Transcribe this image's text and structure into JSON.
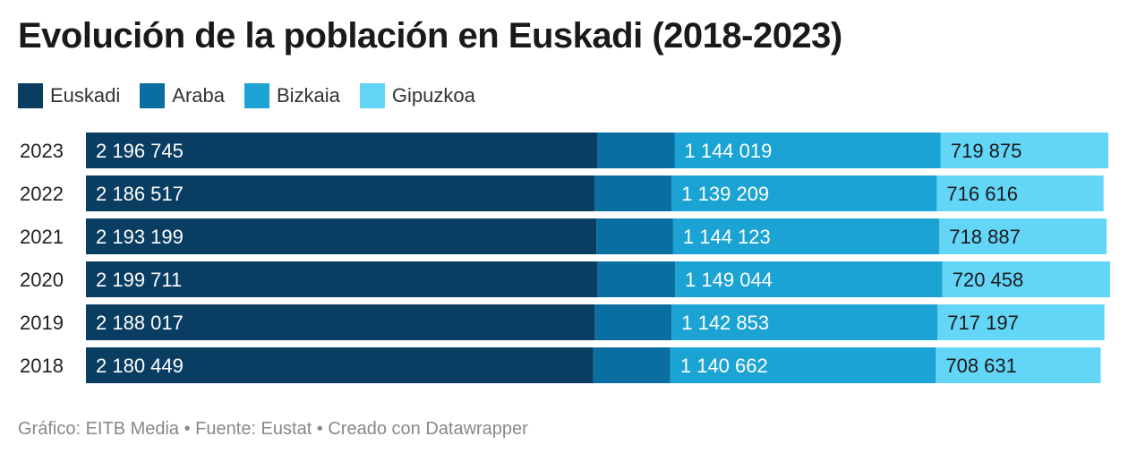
{
  "title": "Evolución de la población en Euskadi (2018-2023)",
  "footer": "Gráfico: EITB Media • Fuente: Eustat • Creado con Datawrapper",
  "chart_data": {
    "type": "bar",
    "orientation": "horizontal",
    "stacked": true,
    "categories": [
      "2023",
      "2022",
      "2021",
      "2020",
      "2019",
      "2018"
    ],
    "series": [
      {
        "name": "Euskadi",
        "color": "#0a3d62",
        "values": [
          2196745,
          2186517,
          2193199,
          2199711,
          2188017,
          2180449
        ],
        "labels": [
          "2 196 745",
          "2 186 517",
          "2 193 199",
          "2 199 711",
          "2 188 017",
          "2 180 449"
        ]
      },
      {
        "name": "Araba",
        "color": "#0b6ea0",
        "values": [
          332731,
          330692,
          330189,
          331972,
          328967,
          331257
        ],
        "labels": [
          "",
          "",
          "",
          "",
          "",
          ""
        ]
      },
      {
        "name": "Bizkaia",
        "color": "#1ba3d4",
        "values": [
          1144019,
          1139209,
          1144123,
          1149044,
          1142853,
          1140662
        ],
        "labels": [
          "1 144 019",
          "1 139 209",
          "1 144 123",
          "1 149 044",
          "1 142 853",
          "1 140 662"
        ]
      },
      {
        "name": "Gipuzkoa",
        "color": "#63d5f7",
        "values": [
          719875,
          716616,
          718887,
          720458,
          717197,
          708631
        ],
        "labels": [
          "719 875",
          "716 616",
          "718 887",
          "720 458",
          "717 197",
          "708 631"
        ]
      }
    ],
    "legend_position": "top-left",
    "grid": false
  }
}
